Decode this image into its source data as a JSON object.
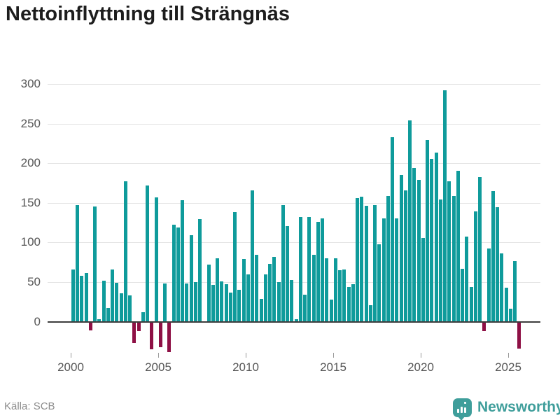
{
  "title": "Nettoinflyttning till Strängnäs",
  "source": {
    "label": "Källa: SCB"
  },
  "brand": {
    "name": "Newsworthy",
    "logo_icon": "bar-chart-bubble-icon",
    "color": "#3f9e9b"
  },
  "colors": {
    "positive_bar": "#0f9b9b",
    "negative_bar": "#8e1045",
    "gridline": "#e4e4e4",
    "zero_axis": "#3d3d3d",
    "axis_text": "#565656",
    "title_text": "#1d1d1d",
    "source_text": "#8c8c8c"
  },
  "chart_data": {
    "type": "bar",
    "title": "Nettoinflyttning till Strängnäs",
    "period": "quarterly",
    "start": "2000-Q1",
    "end": "2025-Q3",
    "xlabel": "",
    "ylabel": "",
    "y_ticks": [
      0,
      50,
      100,
      150,
      200,
      250,
      300
    ],
    "ylim": [
      -50,
      310
    ],
    "grid": true,
    "x_tick_labels": [
      "2000",
      "2005",
      "2010",
      "2015",
      "2020",
      "2025"
    ],
    "values_by_year": {
      "2000": [
        66,
        147,
        58,
        61
      ],
      "2001": [
        -11,
        145,
        3,
        52
      ],
      "2002": [
        17,
        66,
        49,
        36
      ],
      "2003": [
        177,
        33,
        -27,
        -12
      ],
      "2004": [
        12,
        172,
        -35,
        157
      ],
      "2005": [
        -32,
        48,
        -38,
        122
      ],
      "2006": [
        119,
        153,
        48,
        109
      ],
      "2007": [
        50,
        129,
        0,
        72
      ],
      "2008": [
        46,
        80,
        51,
        47
      ],
      "2009": [
        37,
        138,
        40,
        79
      ],
      "2010": [
        60,
        166,
        84,
        29
      ],
      "2011": [
        60,
        73,
        82,
        50
      ],
      "2012": [
        147,
        121,
        53,
        3
      ],
      "2013": [
        132,
        34,
        132,
        84
      ],
      "2014": [
        126,
        130,
        80,
        28
      ],
      "2015": [
        80,
        65,
        66,
        44
      ],
      "2016": [
        47,
        156,
        158,
        146
      ],
      "2017": [
        21,
        147,
        98,
        130
      ],
      "2018": [
        159,
        233,
        130,
        185
      ],
      "2019": [
        166,
        254,
        194,
        179
      ],
      "2020": [
        106,
        229,
        205,
        213
      ],
      "2021": [
        154,
        292,
        177,
        159
      ],
      "2022": [
        190,
        67,
        107,
        44
      ],
      "2023": [
        139,
        182,
        -12,
        92
      ],
      "2024": [
        165,
        144,
        86,
        43
      ],
      "2025": [
        16,
        76,
        -34
      ]
    }
  }
}
